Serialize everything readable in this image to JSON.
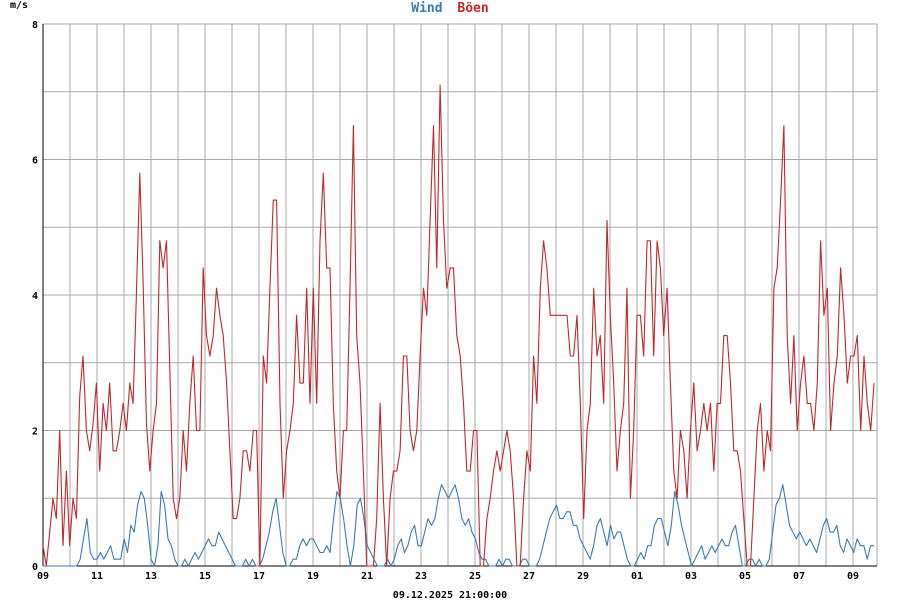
{
  "chart_data": {
    "type": "line",
    "title_parts": [
      {
        "text": "Wind",
        "color": "#3a7ab8"
      },
      {
        "text": "Böen",
        "color": "#c0282c"
      }
    ],
    "ylabel": "m/s",
    "ylim": [
      0,
      8
    ],
    "y_ticks": [
      "0",
      "2",
      "4",
      "6",
      "8"
    ],
    "x_ticks": [
      "09",
      "11",
      "13",
      "15",
      "17",
      "19",
      "21",
      "23",
      "25",
      "27",
      "29",
      "01",
      "03",
      "05",
      "07",
      "09"
    ],
    "footer": "09.12.2025 21:00:00",
    "grid": true,
    "series": [
      {
        "name": "Wind",
        "color": "#3a7ab8",
        "values": [
          0.0,
          0.0,
          0.0,
          0.0,
          0.0,
          0.0,
          0.0,
          0.0,
          0.0,
          0.0,
          0.0,
          0.1,
          0.4,
          0.7,
          0.2,
          0.1,
          0.1,
          0.2,
          0.1,
          0.2,
          0.3,
          0.1,
          0.1,
          0.1,
          0.4,
          0.2,
          0.6,
          0.5,
          0.9,
          1.1,
          1.0,
          0.6,
          0.1,
          0.0,
          0.3,
          1.1,
          0.9,
          0.4,
          0.3,
          0.1,
          0.0,
          0.0,
          0.1,
          0.0,
          0.1,
          0.2,
          0.1,
          0.2,
          0.3,
          0.4,
          0.3,
          0.3,
          0.5,
          0.4,
          0.3,
          0.2,
          0.1,
          0.0,
          0.0,
          0.0,
          0.1,
          0.0,
          0.1,
          0.0,
          0.0,
          0.1,
          0.3,
          0.5,
          0.8,
          1.0,
          0.6,
          0.2,
          0.0,
          0.0,
          0.1,
          0.1,
          0.3,
          0.4,
          0.3,
          0.4,
          0.4,
          0.3,
          0.2,
          0.2,
          0.3,
          0.2,
          0.7,
          1.1,
          1.0,
          0.7,
          0.3,
          0.0,
          0.3,
          0.9,
          1.0,
          0.7,
          0.3,
          0.2,
          0.1,
          0.0,
          0.0,
          0.0,
          0.1,
          0.0,
          0.1,
          0.3,
          0.4,
          0.2,
          0.3,
          0.5,
          0.6,
          0.3,
          0.3,
          0.5,
          0.7,
          0.6,
          0.7,
          1.0,
          1.2,
          1.1,
          1.0,
          1.1,
          1.2,
          1.0,
          0.7,
          0.6,
          0.7,
          0.5,
          0.4,
          0.2,
          0.1,
          0.1,
          0.0,
          0.0,
          0.0,
          0.1,
          0.0,
          0.1,
          0.1,
          0.0,
          0.0,
          0.0,
          0.1,
          0.1,
          0.0,
          0.0,
          0.0,
          0.1,
          0.3,
          0.5,
          0.7,
          0.8,
          0.9,
          0.7,
          0.7,
          0.8,
          0.8,
          0.6,
          0.6,
          0.4,
          0.3,
          0.2,
          0.1,
          0.3,
          0.6,
          0.7,
          0.5,
          0.3,
          0.6,
          0.4,
          0.5,
          0.5,
          0.3,
          0.1,
          0.0,
          0.0,
          0.1,
          0.2,
          0.1,
          0.3,
          0.3,
          0.6,
          0.7,
          0.7,
          0.5,
          0.3,
          0.6,
          1.1,
          0.9,
          0.6,
          0.4,
          0.2,
          0.0,
          0.1,
          0.2,
          0.3,
          0.1,
          0.2,
          0.3,
          0.2,
          0.3,
          0.4,
          0.3,
          0.3,
          0.5,
          0.6,
          0.3,
          0.0,
          0.0,
          0.1,
          0.1,
          0.0,
          0.1,
          0.0,
          0.0,
          0.1,
          0.5,
          0.9,
          1.0,
          1.2,
          0.9,
          0.6,
          0.5,
          0.4,
          0.5,
          0.4,
          0.3,
          0.4,
          0.3,
          0.2,
          0.4,
          0.6,
          0.7,
          0.5,
          0.5,
          0.6,
          0.3,
          0.2,
          0.4,
          0.3,
          0.2,
          0.4,
          0.3,
          0.3,
          0.1,
          0.3,
          0.3
        ]
      },
      {
        "name": "Böen",
        "color": "#c0282c",
        "values": [
          0.3,
          0.0,
          0.5,
          1.0,
          0.7,
          2.0,
          0.3,
          1.4,
          0.3,
          1.0,
          0.7,
          2.5,
          3.1,
          2.0,
          1.7,
          2.1,
          2.7,
          1.4,
          2.4,
          2.0,
          2.7,
          1.7,
          1.7,
          2.0,
          2.4,
          2.0,
          2.7,
          2.4,
          4.0,
          5.8,
          4.2,
          2.1,
          1.4,
          2.0,
          2.4,
          4.8,
          4.4,
          4.8,
          2.9,
          1.0,
          0.7,
          1.0,
          2.0,
          1.4,
          2.4,
          3.1,
          2.0,
          2.0,
          4.4,
          3.4,
          3.1,
          3.4,
          4.1,
          3.7,
          3.4,
          2.7,
          1.7,
          0.7,
          0.7,
          1.0,
          1.7,
          1.7,
          1.4,
          2.0,
          2.0,
          0.0,
          3.1,
          2.7,
          4.1,
          5.4,
          5.4,
          2.4,
          1.0,
          1.7,
          2.0,
          2.4,
          3.7,
          2.7,
          2.7,
          4.1,
          2.4,
          4.1,
          2.4,
          4.8,
          5.8,
          4.4,
          4.4,
          2.4,
          1.4,
          1.0,
          2.0,
          2.0,
          4.1,
          6.5,
          3.4,
          2.7,
          1.4,
          0.0,
          0.0,
          0.0,
          0.7,
          2.4,
          1.0,
          0.0,
          1.0,
          1.4,
          1.4,
          1.7,
          3.1,
          3.1,
          2.0,
          1.7,
          2.0,
          3.1,
          4.1,
          3.7,
          5.1,
          6.5,
          4.4,
          7.1,
          5.1,
          4.1,
          4.4,
          4.4,
          3.4,
          3.1,
          2.4,
          1.4,
          1.4,
          2.0,
          2.0,
          0.0,
          0.0,
          0.7,
          1.0,
          1.4,
          1.7,
          1.4,
          1.7,
          2.0,
          1.7,
          1.0,
          0.0,
          0.0,
          1.0,
          1.7,
          1.4,
          3.1,
          2.4,
          4.1,
          4.8,
          4.4,
          3.7,
          3.7,
          3.7,
          3.7,
          3.7,
          3.7,
          3.1,
          3.1,
          3.7,
          2.4,
          0.7,
          2.0,
          2.4,
          4.1,
          3.1,
          3.4,
          2.4,
          5.1,
          3.7,
          2.7,
          1.4,
          2.0,
          2.4,
          4.1,
          1.0,
          2.0,
          3.7,
          3.7,
          3.1,
          4.8,
          4.8,
          3.1,
          4.8,
          4.4,
          3.4,
          4.1,
          2.7,
          1.4,
          1.0,
          2.0,
          1.7,
          1.0,
          2.0,
          2.7,
          1.7,
          2.0,
          2.4,
          2.0,
          2.4,
          1.4,
          2.4,
          2.4,
          3.4,
          3.4,
          2.7,
          1.7,
          1.7,
          1.4,
          0.7,
          0.0,
          0.0,
          1.0,
          2.0,
          2.4,
          1.4,
          2.0,
          1.7,
          4.1,
          4.4,
          5.4,
          6.5,
          3.4,
          2.4,
          3.4,
          2.0,
          2.7,
          3.1,
          2.4,
          2.4,
          2.0,
          2.7,
          4.8,
          3.7,
          4.1,
          2.0,
          2.7,
          3.1,
          4.4,
          3.7,
          2.7,
          3.1,
          3.1,
          3.4,
          2.0,
          3.1,
          2.4,
          2.0,
          2.7
        ]
      }
    ]
  }
}
